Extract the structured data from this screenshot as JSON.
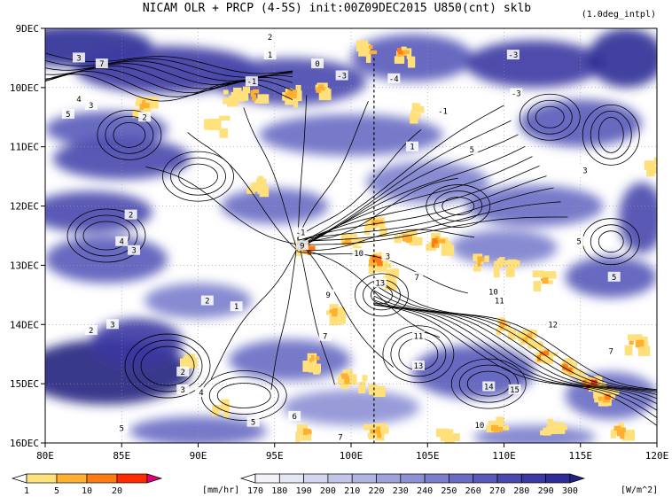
{
  "chart_data": {
    "type": "heatmap",
    "title": "NICAM  OLR + PRCP (4-5S) init:00Z09DEC2015 U850(cnt) sklb",
    "subtitle": "(1.0deg_intpl)",
    "xlabel": "",
    "ylabel": "",
    "x_ticks": [
      "80E",
      "85E",
      "90E",
      "95E",
      "100E",
      "105E",
      "110E",
      "115E",
      "120E"
    ],
    "x_values": [
      80,
      85,
      90,
      95,
      100,
      105,
      110,
      115,
      120
    ],
    "xlim": [
      80,
      120
    ],
    "y_ticks": [
      "9DEC",
      "10DEC",
      "11DEC",
      "12DEC",
      "13DEC",
      "14DEC",
      "15DEC",
      "16DEC"
    ],
    "y_values": [
      9,
      10,
      11,
      12,
      13,
      14,
      15,
      16
    ],
    "ylim": [
      9,
      16
    ],
    "grid": true,
    "reference_line_lon": 101.5,
    "precip_colorbar": {
      "labels": [
        "1",
        "5",
        "10",
        "20"
      ],
      "unit": "[mm/hr]",
      "colors": [
        "#ffffff",
        "#ffe07a",
        "#ffb030",
        "#ff7a10",
        "#ff2a00",
        "#e0007a"
      ]
    },
    "olr_colorbar": {
      "labels": [
        "170",
        "180",
        "190",
        "200",
        "210",
        "220",
        "230",
        "240",
        "250",
        "260",
        "270",
        "280",
        "290",
        "300"
      ],
      "unit": "[W/m^2]",
      "colors": [
        "#ffffff",
        "#f2f2f8",
        "#e4e6f3",
        "#d3d6ee",
        "#c2c5e8",
        "#b0b4e2",
        "#9ea2db",
        "#8c90d4",
        "#7a7ecc",
        "#686cc3",
        "#585ab9",
        "#4848ae",
        "#3a38a2",
        "#2e2c96",
        "#25227f"
      ]
    },
    "contour_labels": [
      {
        "text": "2",
        "lon": 94.7,
        "day": 9.15
      },
      {
        "text": "1",
        "lon": 94.7,
        "day": 9.45
      },
      {
        "text": "0",
        "lon": 97.8,
        "day": 9.6
      },
      {
        "text": "-3",
        "lon": 99.4,
        "day": 9.8
      },
      {
        "text": "-1",
        "lon": 93.5,
        "day": 9.9
      },
      {
        "text": "3",
        "lon": 82.2,
        "day": 9.5
      },
      {
        "text": "7",
        "lon": 83.7,
        "day": 9.6
      },
      {
        "text": "4",
        "lon": 82.2,
        "day": 10.2
      },
      {
        "text": "5",
        "lon": 81.5,
        "day": 10.45
      },
      {
        "text": "3",
        "lon": 83.0,
        "day": 10.3
      },
      {
        "text": "2",
        "lon": 86.5,
        "day": 10.5
      },
      {
        "text": "-4",
        "lon": 102.8,
        "day": 9.85
      },
      {
        "text": "-3",
        "lon": 110.6,
        "day": 9.45
      },
      {
        "text": "-3",
        "lon": 110.8,
        "day": 10.1
      },
      {
        "text": "-1",
        "lon": 106.0,
        "day": 10.4
      },
      {
        "text": "1",
        "lon": 104.0,
        "day": 11.0
      },
      {
        "text": "5",
        "lon": 107.9,
        "day": 11.05
      },
      {
        "text": "-1",
        "lon": 96.7,
        "day": 12.45
      },
      {
        "text": "9",
        "lon": 96.8,
        "day": 12.67
      },
      {
        "text": "10",
        "lon": 100.5,
        "day": 12.8
      },
      {
        "text": "3",
        "lon": 102.4,
        "day": 12.85
      },
      {
        "text": "7",
        "lon": 104.3,
        "day": 13.2
      },
      {
        "text": "10",
        "lon": 109.3,
        "day": 13.45
      },
      {
        "text": "13",
        "lon": 101.9,
        "day": 13.3
      },
      {
        "text": "11",
        "lon": 109.7,
        "day": 13.6
      },
      {
        "text": "12",
        "lon": 113.2,
        "day": 14.0
      },
      {
        "text": "11",
        "lon": 104.4,
        "day": 14.2
      },
      {
        "text": "13",
        "lon": 104.4,
        "day": 14.7
      },
      {
        "text": "15",
        "lon": 110.7,
        "day": 15.1
      },
      {
        "text": "14",
        "lon": 109.0,
        "day": 15.05
      },
      {
        "text": "2",
        "lon": 85.6,
        "day": 12.15
      },
      {
        "text": "4",
        "lon": 85.0,
        "day": 12.6
      },
      {
        "text": "3",
        "lon": 85.8,
        "day": 12.75
      },
      {
        "text": "2",
        "lon": 90.6,
        "day": 13.6
      },
      {
        "text": "1",
        "lon": 92.5,
        "day": 13.7
      },
      {
        "text": "3",
        "lon": 84.4,
        "day": 14.0
      },
      {
        "text": "2",
        "lon": 83.0,
        "day": 14.1
      },
      {
        "text": "2",
        "lon": 89.0,
        "day": 14.8
      },
      {
        "text": "3",
        "lon": 89.0,
        "day": 15.1
      },
      {
        "text": "4",
        "lon": 90.2,
        "day": 15.15
      },
      {
        "text": "5",
        "lon": 85.0,
        "day": 15.75
      },
      {
        "text": "5",
        "lon": 93.6,
        "day": 15.65
      },
      {
        "text": "6",
        "lon": 96.3,
        "day": 15.55
      },
      {
        "text": "7",
        "lon": 98.3,
        "day": 14.2
      },
      {
        "text": "9",
        "lon": 98.5,
        "day": 13.5
      },
      {
        "text": "7",
        "lon": 99.3,
        "day": 15.9
      },
      {
        "text": "10",
        "lon": 108.4,
        "day": 15.7
      },
      {
        "text": "5",
        "lon": 114.9,
        "day": 12.6
      },
      {
        "text": "5",
        "lon": 117.2,
        "day": 13.2
      },
      {
        "text": "7",
        "lon": 117.0,
        "day": 14.45
      },
      {
        "text": "3",
        "lon": 115.3,
        "day": 11.4
      }
    ]
  }
}
